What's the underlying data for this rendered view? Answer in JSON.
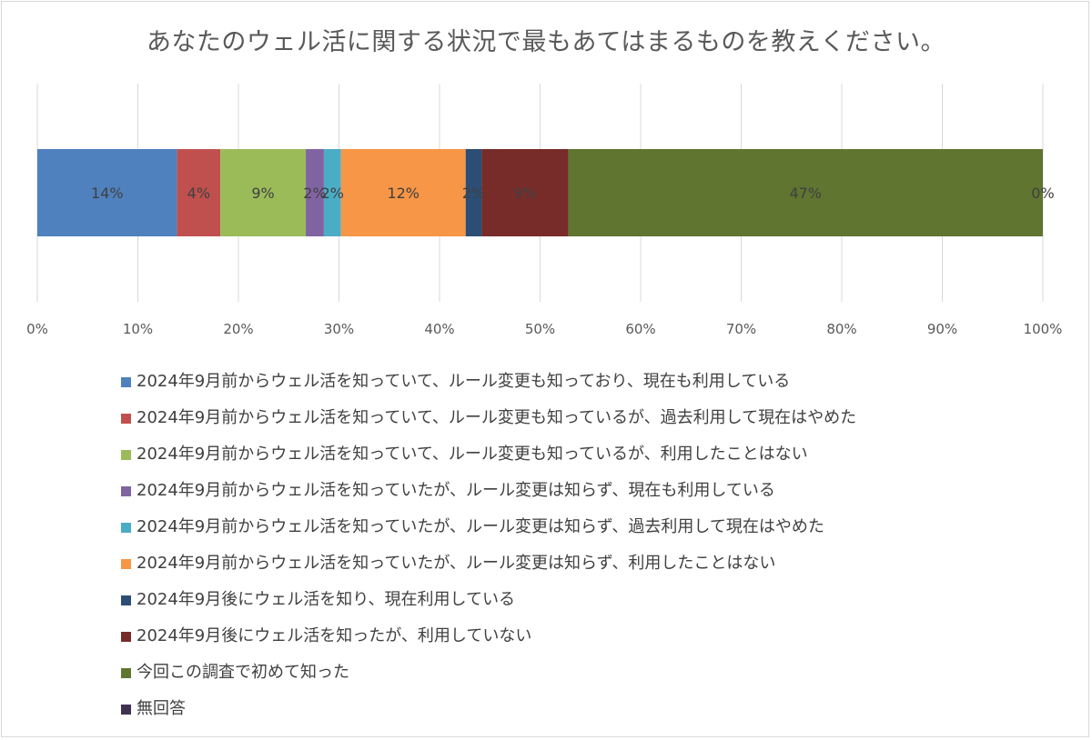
{
  "chart_data": {
    "type": "bar",
    "orientation": "horizontal-stacked-100",
    "title": "あなたのウェル活に関する状況で最もあてはまるものを教えください。",
    "xlim": [
      0,
      100
    ],
    "x_ticks": [
      "0%",
      "10%",
      "20%",
      "30%",
      "40%",
      "50%",
      "60%",
      "70%",
      "80%",
      "90%",
      "100%"
    ],
    "grid": true,
    "legend_position": "bottom",
    "series": [
      {
        "name": "2024年9月前からウェル活を知っていて、ルール変更も知っており、現在も利用している",
        "value": 13.9,
        "label": "14%",
        "color": "#4e81bd"
      },
      {
        "name": "2024年9月前からウェル活を知っていて、ルール変更も知っているが、過去利用して現在はやめた",
        "value": 4.3,
        "label": "4%",
        "color": "#c0504e"
      },
      {
        "name": "2024年9月前からウェル活を知っていて、ルール変更も知っているが、利用したことはない",
        "value": 8.5,
        "label": "9%",
        "color": "#9bbb59"
      },
      {
        "name": "2024年9月前からウェル活を知っていたが、ルール変更は知らず、現在も利用している",
        "value": 1.8,
        "label": "2%",
        "color": "#8064a2"
      },
      {
        "name": "2024年9月前からウェル活を知っていたが、ルール変更は知らず、過去利用して現在はやめた",
        "value": 1.7,
        "label": "2%",
        "color": "#4bacc6"
      },
      {
        "name": "2024年9月前からウェル活を知っていたが、ルール変更は知らず、利用したことはない",
        "value": 12.4,
        "label": "12%",
        "color": "#f79646"
      },
      {
        "name": "2024年9月後にウェル活を知り、現在利用している",
        "value": 1.6,
        "label": "2%",
        "color": "#2c4d75"
      },
      {
        "name": "2024年9月後にウェル活を知ったが、利用していない",
        "value": 8.6,
        "label": "9%",
        "color": "#772c2a"
      },
      {
        "name": "今回この調査で初めて知った",
        "value": 47.2,
        "label": "47%",
        "color": "#5f7530"
      },
      {
        "name": "無回答",
        "value": 0.0,
        "label": "0%",
        "color": "#403151"
      }
    ]
  }
}
